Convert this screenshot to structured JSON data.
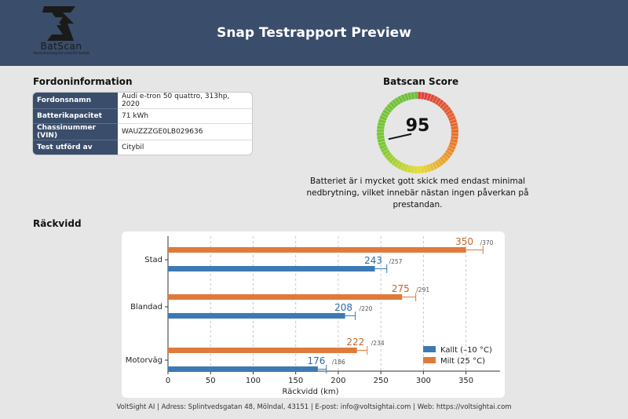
{
  "header": {
    "logo_text": "BatScan",
    "logo_tagline": "Revolutionizing the used EV market",
    "title": "Snap Testrapport Preview",
    "bg_color": "#3a4d6a"
  },
  "vehicle": {
    "section_title": "Fordoninformation",
    "rows": [
      {
        "label": "Fordonsnamn",
        "value": "Audi e-tron 50 quattro, 313hp, 2020"
      },
      {
        "label": "Batterikapacitet",
        "value": "71 kWh"
      },
      {
        "label": "Chassinummer (VIN)",
        "value": "WAUZZZGE0LB029636"
      },
      {
        "label": "Test utförd av",
        "value": "Citybil"
      }
    ]
  },
  "score": {
    "section_title": "Batscan Score",
    "value": "95",
    "description": "Batteriet är i mycket gott skick med endast minimal nedbrytning, vilket innebär nästan ingen påverkan på prestandan."
  },
  "range": {
    "section_title": "Räckvidd"
  },
  "chart_data": {
    "type": "bar",
    "orientation": "horizontal",
    "categories": [
      "Stad",
      "Blandad",
      "Motorväg"
    ],
    "series": [
      {
        "name": "Milt (25 °C)",
        "color": "#e07a3c",
        "values": [
          350,
          275,
          222
        ],
        "max_labels": [
          "/370",
          "/291",
          "/234"
        ],
        "max": [
          370,
          291,
          234
        ]
      },
      {
        "name": "Kallt (–10 °C)",
        "color": "#3d7ab3",
        "values": [
          243,
          208,
          176
        ],
        "max_labels": [
          "/257",
          "/220",
          "/186"
        ],
        "max": [
          257,
          220,
          186
        ]
      }
    ],
    "xlabel": "Räckvidd (km)",
    "xlim": [
      0,
      390
    ],
    "xticks": [
      "0",
      "50",
      "100",
      "150",
      "200",
      "250",
      "300",
      "350"
    ],
    "grid": true,
    "legend_position": "lower-right"
  },
  "footer": {
    "text": "VoltSight AI | Adress: Splintvedsgatan 48, Mölndal, 43151 | E-post: info@voltsightai.com | Web: https://voltsightai.com"
  }
}
